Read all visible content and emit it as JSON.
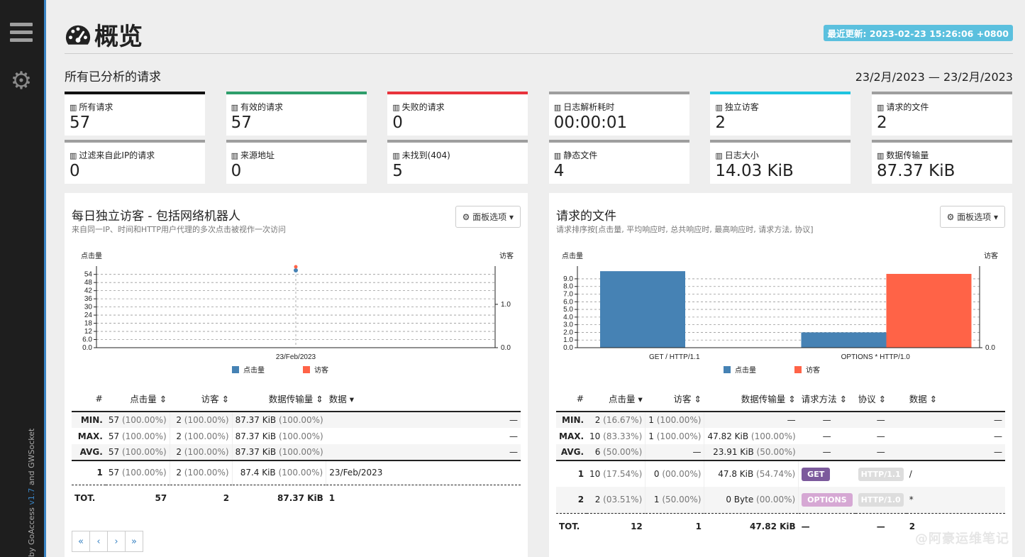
{
  "sidebar": {
    "version_text_a": "GoAccess",
    "version": "v1.7",
    "version_text_b": "and GWSocket",
    "version_prefix": "by"
  },
  "header": {
    "title": "概览",
    "last_updated": "最近更新: 2023-02-23 15:26:06 +0800"
  },
  "overview": {
    "heading": "所有已分析的请求",
    "date_range": "23/2月/2023 — 23/2月/2023"
  },
  "cards": [
    {
      "label": "所有请求",
      "value": "57",
      "color": "#111111"
    },
    {
      "label": "有效的请求",
      "value": "57",
      "color": "#2e9e6b"
    },
    {
      "label": "失败的请求",
      "value": "0",
      "color": "#e8333c"
    },
    {
      "label": "日志解析耗时",
      "value": "00:00:01",
      "color": "#9e9e9e"
    },
    {
      "label": "独立访客",
      "value": "2",
      "color": "#1fc4e0"
    },
    {
      "label": "请求的文件",
      "value": "2",
      "color": "#9e9e9e"
    },
    {
      "label": "过滤来自此IP的请求",
      "value": "0",
      "color": "#9e9e9e"
    },
    {
      "label": "来源地址",
      "value": "0",
      "color": "#9e9e9e"
    },
    {
      "label": "未找到(404)",
      "value": "5",
      "color": "#9e9e9e"
    },
    {
      "label": "静态文件",
      "value": "4",
      "color": "#9e9e9e"
    },
    {
      "label": "日志大小",
      "value": "14.03 KiB",
      "color": "#9e9e9e"
    },
    {
      "label": "数据传输量",
      "value": "87.37 KiB",
      "color": "#9e9e9e"
    }
  ],
  "panel1": {
    "title": "每日独立访客 - 包括网络机器人",
    "subtitle": "来自同一IP、时间和HTTP用户代理的多次点击被视作一次访问",
    "options": "面板选项",
    "chart_data": {
      "type": "line",
      "categories": [
        "23/Feb/2023"
      ],
      "series": [
        {
          "name": "点击量",
          "values": [
            57
          ],
          "color": "#4682b4"
        },
        {
          "name": "访客",
          "values": [
            2
          ],
          "color": "#ff6347"
        }
      ],
      "ylabel": "点击量",
      "y2label": "访客",
      "yticks": [
        "54",
        "48",
        "42",
        "36",
        "30",
        "24",
        "18",
        "12",
        "6.0",
        "0.0"
      ],
      "y2ticks": [
        "1.0",
        "0.0"
      ],
      "grid": true,
      "legend": "bottom"
    },
    "cols": [
      "#",
      "点击量",
      "访客",
      "数据传输量",
      "数据"
    ],
    "summary": [
      {
        "k": "MIN.",
        "hits": "57",
        "hp": "(100.00%)",
        "vis": "2",
        "vp": "(100.00%)",
        "bw": "87.37 KiB",
        "bp": "(100.00%)",
        "d": "—"
      },
      {
        "k": "MAX.",
        "hits": "57",
        "hp": "(100.00%)",
        "vis": "2",
        "vp": "(100.00%)",
        "bw": "87.37 KiB",
        "bp": "(100.00%)",
        "d": "—"
      },
      {
        "k": "AVG.",
        "hits": "57",
        "hp": "(100.00%)",
        "vis": "2",
        "vp": "(100.00%)",
        "bw": "87.37 KiB",
        "bp": "(100.00%)",
        "d": "—"
      }
    ],
    "rows": [
      {
        "n": "1",
        "hits": "57",
        "hp": "(100.00%)",
        "vis": "2",
        "vp": "(100.00%)",
        "bw": "87.4 KiB",
        "bp": "(100.00%)",
        "d": "23/Feb/2023"
      }
    ],
    "total": {
      "k": "TOT.",
      "hits": "57",
      "vis": "2",
      "bw": "87.37 KiB",
      "d": "1"
    },
    "pager": [
      "«",
      "‹",
      "›",
      "»"
    ]
  },
  "panel2": {
    "title": "请求的文件",
    "subtitle": "请求排序按[点击量, 平均响应时, 总共响应时, 最高响应时, 请求方法, 协议]",
    "options": "面板选项",
    "chart_data": {
      "type": "bar",
      "categories": [
        "GET / HTTP/1.1",
        "OPTIONS * HTTP/1.0"
      ],
      "series": [
        {
          "name": "点击量",
          "values": [
            10,
            2
          ],
          "color": "#4682b4"
        },
        {
          "name": "访客",
          "values": [
            0,
            1
          ],
          "color": "#ff6347"
        }
      ],
      "ylabel": "点击量",
      "y2label": "访客",
      "yticks": [
        "9.0",
        "8.0",
        "7.0",
        "6.0",
        "5.0",
        "4.0",
        "3.0",
        "2.0",
        "1.0",
        "0.0"
      ],
      "y2ticks": [
        "0.0"
      ],
      "grid": true,
      "legend": "bottom"
    },
    "cols": [
      "#",
      "点击量",
      "访客",
      "数据传输量",
      "请求方法",
      "协议",
      "数据"
    ],
    "summary": [
      {
        "k": "MIN.",
        "hits": "2",
        "hp": "(16.67%)",
        "vis": "1",
        "vp": "(100.00%)",
        "bw": "—",
        "bp": "",
        "m": "—",
        "p": "—",
        "d": "—"
      },
      {
        "k": "MAX.",
        "hits": "10",
        "hp": "(83.33%)",
        "vis": "1",
        "vp": "(100.00%)",
        "bw": "47.82 KiB",
        "bp": "(100.00%)",
        "m": "—",
        "p": "—",
        "d": "—"
      },
      {
        "k": "AVG.",
        "hits": "6",
        "hp": "(50.00%)",
        "vis": "—",
        "vp": "",
        "bw": "23.91 KiB",
        "bp": "(50.00%)",
        "m": "—",
        "p": "—",
        "d": "—"
      }
    ],
    "rows": [
      {
        "n": "1",
        "hits": "10",
        "hp": "(17.54%)",
        "vis": "0",
        "vp": "(00.00%)",
        "bw": "47.8 KiB",
        "bp": "(54.74%)",
        "m": "GET",
        "mcolor": "#7c5a9c",
        "p": "HTTP/1.1",
        "d": "/"
      },
      {
        "n": "2",
        "hits": "2",
        "hp": "(03.51%)",
        "vis": "1",
        "vp": "(50.00%)",
        "bw": "0 Byte",
        "bp": "(00.00%)",
        "m": "OPTIONS",
        "mcolor": "#d6a8d4",
        "p": "HTTP/1.0",
        "d": "*"
      }
    ],
    "total": {
      "k": "TOT.",
      "hits": "12",
      "vis": "1",
      "bw": "47.82 KiB",
      "m": "—",
      "p": "—",
      "d": "2"
    }
  },
  "watermark": "@阿豪运维笔记"
}
